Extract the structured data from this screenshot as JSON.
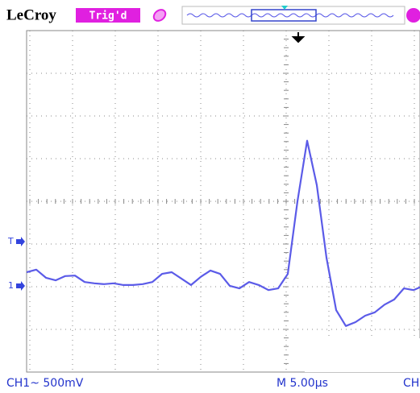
{
  "header": {
    "brand": "LeCroy",
    "status": "Trig'd"
  },
  "footer": {
    "channel": "CH1~ 500mV",
    "timebase": "M 5.00µs",
    "channel2": "CH"
  },
  "markers": {
    "trigger": "T",
    "ground": "1"
  },
  "trace": {
    "color": "#5b5be8",
    "ylim": [
      -4,
      4
    ],
    "values": [
      -1.66,
      -1.6,
      -1.79,
      -1.85,
      -1.75,
      -1.74,
      -1.89,
      -1.92,
      -1.94,
      -1.92,
      -1.96,
      -1.96,
      -1.94,
      -1.89,
      -1.7,
      -1.66,
      -1.81,
      -1.96,
      -1.77,
      -1.62,
      -1.7,
      -1.98,
      -2.04,
      -1.89,
      -1.96,
      -2.08,
      -2.04,
      -1.7,
      0,
      1.42,
      0.38,
      -1.32,
      -2.55,
      -2.92,
      -2.83,
      -2.68,
      -2.6,
      -2.42,
      -2.3,
      -2.04,
      -2.08,
      -1.98
    ]
  }
}
